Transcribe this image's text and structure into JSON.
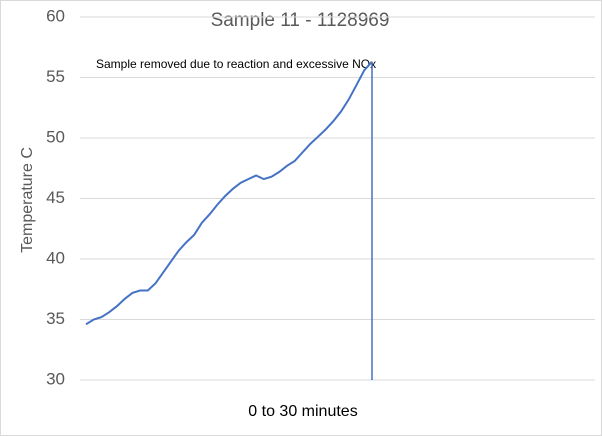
{
  "chart_data": {
    "type": "line",
    "title": "Sample 11 - 1128969",
    "annotation": "Sample removed due to reaction and excessive NOx",
    "x_label": "0 to 30 minutes",
    "y_label": "Temperature C",
    "categories": [
      null,
      null,
      null,
      null,
      null,
      null,
      null,
      null,
      null,
      null,
      null,
      null,
      null,
      null,
      null,
      null,
      null,
      null,
      null,
      null,
      null,
      null,
      null,
      null,
      null,
      null,
      null,
      null,
      null,
      null,
      null,
      null,
      null,
      null,
      null,
      null,
      null,
      null
    ],
    "series": [
      {
        "name": "Temperature",
        "color": "#4472c4",
        "values": [
          34.6,
          35.0,
          35.2,
          35.6,
          36.1,
          36.7,
          37.2,
          37.4,
          37.4,
          38.0,
          38.9,
          39.8,
          40.7,
          41.4,
          42.0,
          43.0,
          43.7,
          44.5,
          45.2,
          45.8,
          46.3,
          46.6,
          46.9,
          46.6,
          46.8,
          47.2,
          47.7,
          48.1,
          48.8,
          49.5,
          50.1,
          50.7,
          51.4,
          52.2,
          53.2,
          54.4,
          55.6,
          56.3
        ]
      }
    ],
    "ylim": [
      30,
      60
    ],
    "yticks": [
      30,
      35,
      40,
      45,
      50,
      55,
      60
    ],
    "grid": true
  }
}
